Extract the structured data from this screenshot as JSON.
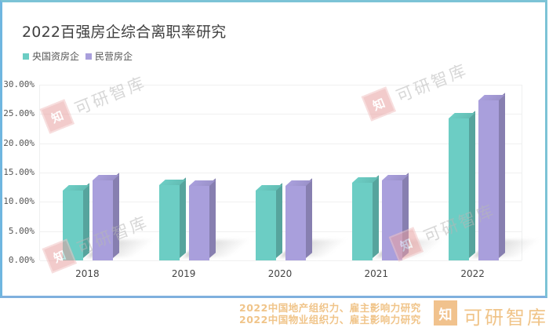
{
  "chart_data": {
    "type": "bar",
    "title": "2022百强房企综合离职率研究",
    "categories": [
      "2018",
      "2019",
      "2020",
      "2021",
      "2022"
    ],
    "series": [
      {
        "name": "央国资房企",
        "color": "#6ccdc4",
        "values": [
          11.9,
          12.8,
          11.9,
          13.2,
          24.2
        ]
      },
      {
        "name": "民营房企",
        "color": "#a99fdc",
        "values": [
          13.6,
          12.7,
          12.7,
          13.6,
          27.3
        ]
      }
    ],
    "xlabel": "",
    "ylabel": "",
    "ylim": [
      0,
      30
    ],
    "yticks": [
      "0.00%",
      "5.00%",
      "10.00%",
      "15.00%",
      "20.00%",
      "25.00%",
      "30.00%"
    ],
    "grid": true,
    "legend_position": "top-left",
    "style": "3d-column"
  },
  "legend": {
    "items": [
      {
        "label": "央国资房企",
        "color": "#6ccdc4"
      },
      {
        "label": "民营房企",
        "color": "#a99fdc"
      }
    ]
  },
  "watermark": {
    "logo": "知",
    "text": "可研智库"
  },
  "footer": {
    "line1": "2022中国地产组织力、雇主影响力研究",
    "line2": "2022中国物业组织力、雇主影响力研究",
    "logo": "知",
    "brand": "可研智库"
  }
}
